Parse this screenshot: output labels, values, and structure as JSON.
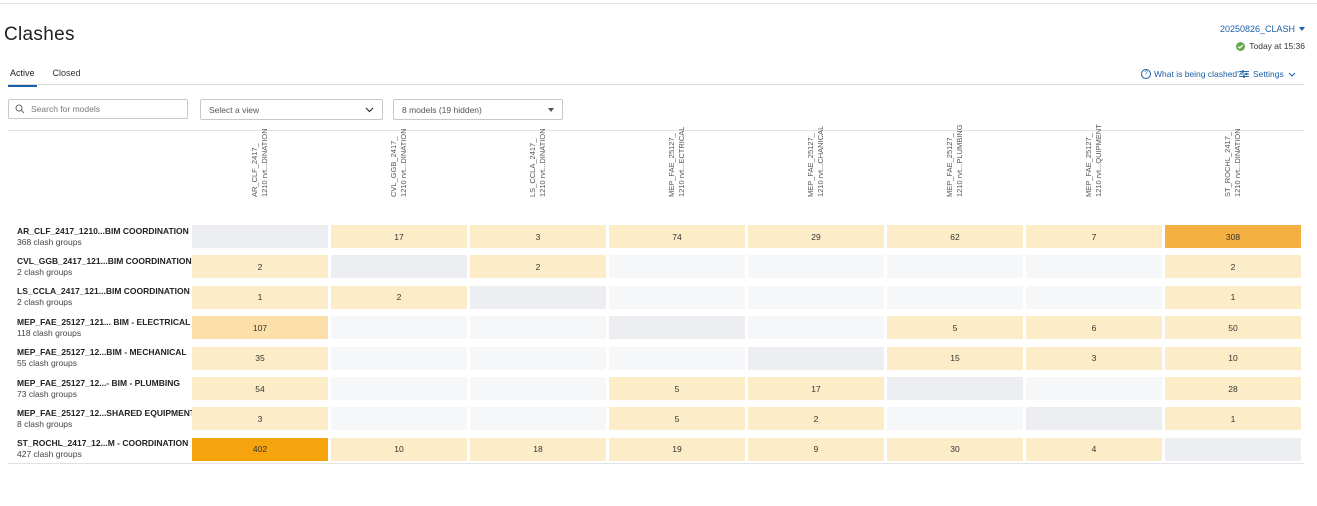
{
  "header": {
    "title": "Clashes",
    "clash_test": "20250826_CLASH",
    "status": "Today at 15:36"
  },
  "tabs": [
    {
      "label": "Active"
    },
    {
      "label": "Closed"
    }
  ],
  "links": {
    "help": "What is being clashed?",
    "settings": "Settings"
  },
  "filters": {
    "search_placeholder": "Search for models",
    "view_label": "Select a view",
    "models_label": "8 models (19 hidden)"
  },
  "matrix": {
    "columns": [
      {
        "line1": "AR_CLF_2417_",
        "line2": "1210 rvt...DINATION"
      },
      {
        "line1": "CVL_GGB_2417_",
        "line2": "1210 rvt...DINATION"
      },
      {
        "line1": "LS_CCLA_2417_",
        "line2": "1210 rvt...DINATION"
      },
      {
        "line1": "MEP_FAE_25127_",
        "line2": "1210 rvt...ECTRICAL"
      },
      {
        "line1": "MEP_FAE_25127_",
        "line2": "1210 rvt...CHANICAL"
      },
      {
        "line1": "MEP_FAE_25127_",
        "line2": "1210 rvt...PLUMBING"
      },
      {
        "line1": "MEP_FAE_25127_",
        "line2": "1210 rvt...QUIPMENT"
      },
      {
        "line1": "ST_ROCHL_2417_",
        "line2": "1210 rvt...DINATION"
      }
    ],
    "rows": [
      {
        "name": "AR_CLF_2417_1210...BIM COORDINATION",
        "count": "368 clash groups",
        "cells": [
          null,
          "17",
          "3",
          "74",
          "29",
          "62",
          "7",
          "308"
        ]
      },
      {
        "name": "CVL_GGB_2417_121...BIM COORDINATION",
        "count": "2 clash groups",
        "cells": [
          "2",
          null,
          "2",
          "",
          "",
          "",
          "",
          "2"
        ]
      },
      {
        "name": "LS_CCLA_2417_121...BIM COORDINATION",
        "count": "2 clash groups",
        "cells": [
          "1",
          "2",
          null,
          "",
          "",
          "",
          "",
          "1"
        ]
      },
      {
        "name": "MEP_FAE_25127_121... BIM - ELECTRICAL",
        "count": "118 clash groups",
        "cells": [
          "107",
          "",
          "",
          null,
          "",
          "5",
          "6",
          "50"
        ]
      },
      {
        "name": "MEP_FAE_25127_12...BIM - MECHANICAL",
        "count": "55 clash groups",
        "cells": [
          "35",
          "",
          "",
          "",
          null,
          "15",
          "3",
          "10"
        ]
      },
      {
        "name": "MEP_FAE_25127_12...- BIM - PLUMBING",
        "count": "73 clash groups",
        "cells": [
          "54",
          "",
          "",
          "5",
          "17",
          null,
          "",
          "28"
        ]
      },
      {
        "name": "MEP_FAE_25127_12...SHARED EQUIPMENT",
        "count": "8 clash groups",
        "cells": [
          "3",
          "",
          "",
          "5",
          "2",
          "",
          null,
          "1"
        ]
      },
      {
        "name": "ST_ROCHL_2417_12...M - COORDINATION",
        "count": "427 clash groups",
        "cells": [
          "402",
          "10",
          "18",
          "19",
          "9",
          "30",
          "4",
          null
        ]
      }
    ]
  },
  "colors": {
    "accent": "#1a5fa8",
    "cell_light": "#fdecc8",
    "cell_mid": "#fddfa9",
    "cell_high": "#f5b042",
    "cell_max": "#f5a40e",
    "cell_empty": "#f6f7f9",
    "cell_diagonal": "#eceef1"
  }
}
